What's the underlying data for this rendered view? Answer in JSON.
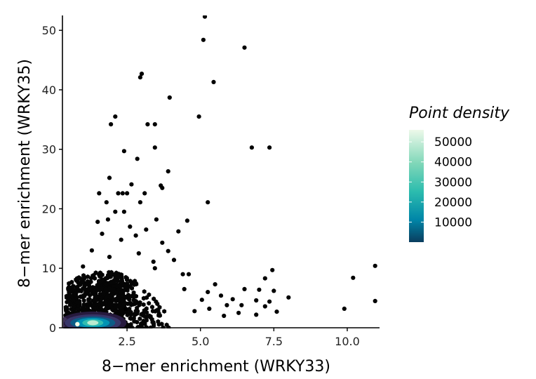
{
  "chart_data": {
    "type": "scatter",
    "xlabel": "8−mer enrichment (WRKY33)",
    "ylabel": "8−mer enrichment (WRKY35)",
    "xlim": [
      0.3,
      11.1
    ],
    "ylim": [
      0,
      52.5
    ],
    "x_ticks": [
      2.5,
      5.0,
      7.5,
      10.0
    ],
    "x_tick_labels": [
      "2.5",
      "5.0",
      "7.5",
      "10.0"
    ],
    "y_ticks": [
      0,
      10,
      20,
      30,
      40,
      50
    ],
    "y_tick_labels": [
      "0",
      "10",
      "20",
      "30",
      "40",
      "50"
    ],
    "grid": false,
    "legend": {
      "title": "Point density",
      "placement": "right",
      "breaks": [
        10000,
        20000,
        30000,
        40000,
        50000
      ],
      "labels": [
        "10000",
        "20000",
        "30000",
        "40000",
        "50000"
      ],
      "max": 56000,
      "colors": [
        "#0a4f7a",
        "#00a0b8",
        "#3fc6b0",
        "#9fe0c4",
        "#eaf8ea"
      ]
    },
    "dense_core": {
      "x_range": [
        0.4,
        2.4
      ],
      "y_range": [
        0,
        9
      ],
      "peak": [
        1.0,
        0.6
      ]
    },
    "points": [
      [
        5.15,
        52.3
      ],
      [
        5.1,
        48.4
      ],
      [
        6.5,
        47.1
      ],
      [
        3.0,
        42.7
      ],
      [
        2.95,
        42.1
      ],
      [
        5.45,
        41.3
      ],
      [
        3.95,
        38.7
      ],
      [
        2.1,
        35.5
      ],
      [
        4.95,
        35.5
      ],
      [
        1.95,
        34.2
      ],
      [
        3.2,
        34.2
      ],
      [
        3.45,
        34.2
      ],
      [
        2.4,
        29.7
      ],
      [
        3.45,
        30.3
      ],
      [
        6.75,
        30.3
      ],
      [
        7.35,
        30.3
      ],
      [
        2.85,
        28.4
      ],
      [
        3.9,
        26.3
      ],
      [
        1.9,
        25.2
      ],
      [
        2.65,
        24.1
      ],
      [
        3.65,
        23.9
      ],
      [
        3.7,
        23.5
      ],
      [
        2.2,
        22.6
      ],
      [
        2.35,
        22.6
      ],
      [
        2.5,
        22.6
      ],
      [
        1.55,
        22.6
      ],
      [
        3.1,
        22.6
      ],
      [
        2.95,
        21.1
      ],
      [
        5.25,
        21.1
      ],
      [
        1.8,
        21.1
      ],
      [
        2.1,
        19.5
      ],
      [
        2.4,
        19.5
      ],
      [
        1.85,
        18.2
      ],
      [
        3.5,
        18.2
      ],
      [
        4.55,
        18.0
      ],
      [
        1.5,
        17.8
      ],
      [
        2.6,
        17.0
      ],
      [
        3.15,
        16.5
      ],
      [
        4.25,
        16.2
      ],
      [
        1.65,
        15.8
      ],
      [
        2.8,
        15.5
      ],
      [
        2.3,
        14.8
      ],
      [
        3.7,
        14.3
      ],
      [
        1.3,
        13.0
      ],
      [
        2.9,
        12.5
      ],
      [
        3.9,
        12.9
      ],
      [
        4.1,
        11.4
      ],
      [
        1.9,
        11.9
      ],
      [
        3.4,
        11.1
      ],
      [
        1.0,
        10.3
      ],
      [
        3.45,
        10.0
      ],
      [
        10.95,
        10.4
      ],
      [
        7.45,
        9.7
      ],
      [
        4.4,
        9.0
      ],
      [
        4.6,
        9.0
      ],
      [
        10.2,
        8.4
      ],
      [
        7.2,
        8.3
      ],
      [
        5.5,
        7.3
      ],
      [
        6.5,
        6.5
      ],
      [
        7.0,
        6.4
      ],
      [
        7.5,
        6.2
      ],
      [
        5.7,
        5.4
      ],
      [
        8.0,
        5.1
      ],
      [
        6.1,
        4.8
      ],
      [
        6.9,
        4.6
      ],
      [
        7.35,
        4.4
      ],
      [
        10.95,
        4.5
      ],
      [
        5.9,
        3.8
      ],
      [
        6.4,
        3.8
      ],
      [
        7.2,
        3.6
      ],
      [
        5.3,
        3.2
      ],
      [
        9.9,
        3.2
      ],
      [
        6.3,
        2.5
      ],
      [
        7.6,
        2.7
      ],
      [
        5.8,
        2.0
      ],
      [
        4.8,
        2.8
      ],
      [
        5.05,
        4.7
      ],
      [
        4.45,
        6.5
      ],
      [
        5.25,
        6.0
      ],
      [
        6.9,
        2.2
      ],
      [
        2.45,
        3.2
      ]
    ]
  }
}
